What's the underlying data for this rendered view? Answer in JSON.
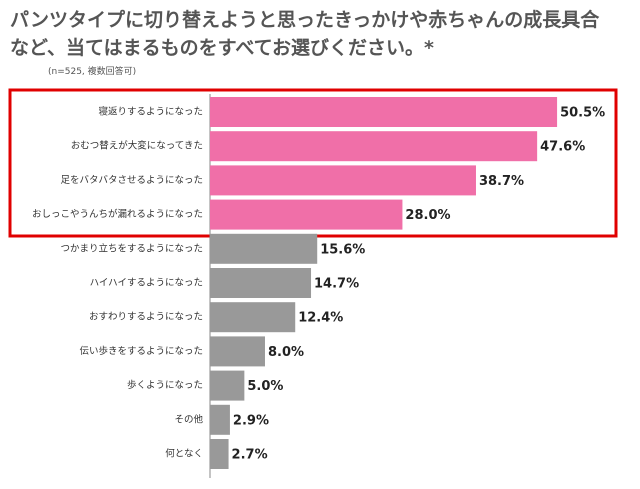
{
  "chart_data": {
    "type": "bar",
    "orientation": "horizontal",
    "title": "パンツタイプに切り替えようと思ったきっかけや赤ちゃんの成長具合など、当てはまるものをすべてお選びください。*",
    "subtitle": "(n=525, 複数回答可)",
    "categories": [
      "寝返りするようになった",
      "おむつ替えが大変になってきた",
      "足をバタバタさせるようになった",
      "おしっこやうんちが漏れるようになった",
      "つかまり立ちをするようになった",
      "ハイハイするようになった",
      "おすわりするようになった",
      "伝い歩きをするようになった",
      "歩くようになった",
      "その他",
      "何となく"
    ],
    "values": [
      50.5,
      47.6,
      38.7,
      28.0,
      15.6,
      14.7,
      12.4,
      8.0,
      5.0,
      2.9,
      2.7
    ],
    "value_labels": [
      "50.5%",
      "47.6%",
      "38.7%",
      "28.0%",
      "15.6%",
      "14.7%",
      "12.4%",
      "8.0%",
      "5.0%",
      "2.9%",
      "2.7%"
    ],
    "colors": [
      "#f06fa8",
      "#f06fa8",
      "#f06fa8",
      "#f06fa8",
      "#999999",
      "#999999",
      "#999999",
      "#999999",
      "#999999",
      "#999999",
      "#999999"
    ],
    "xlim": [
      0,
      55
    ]
  }
}
